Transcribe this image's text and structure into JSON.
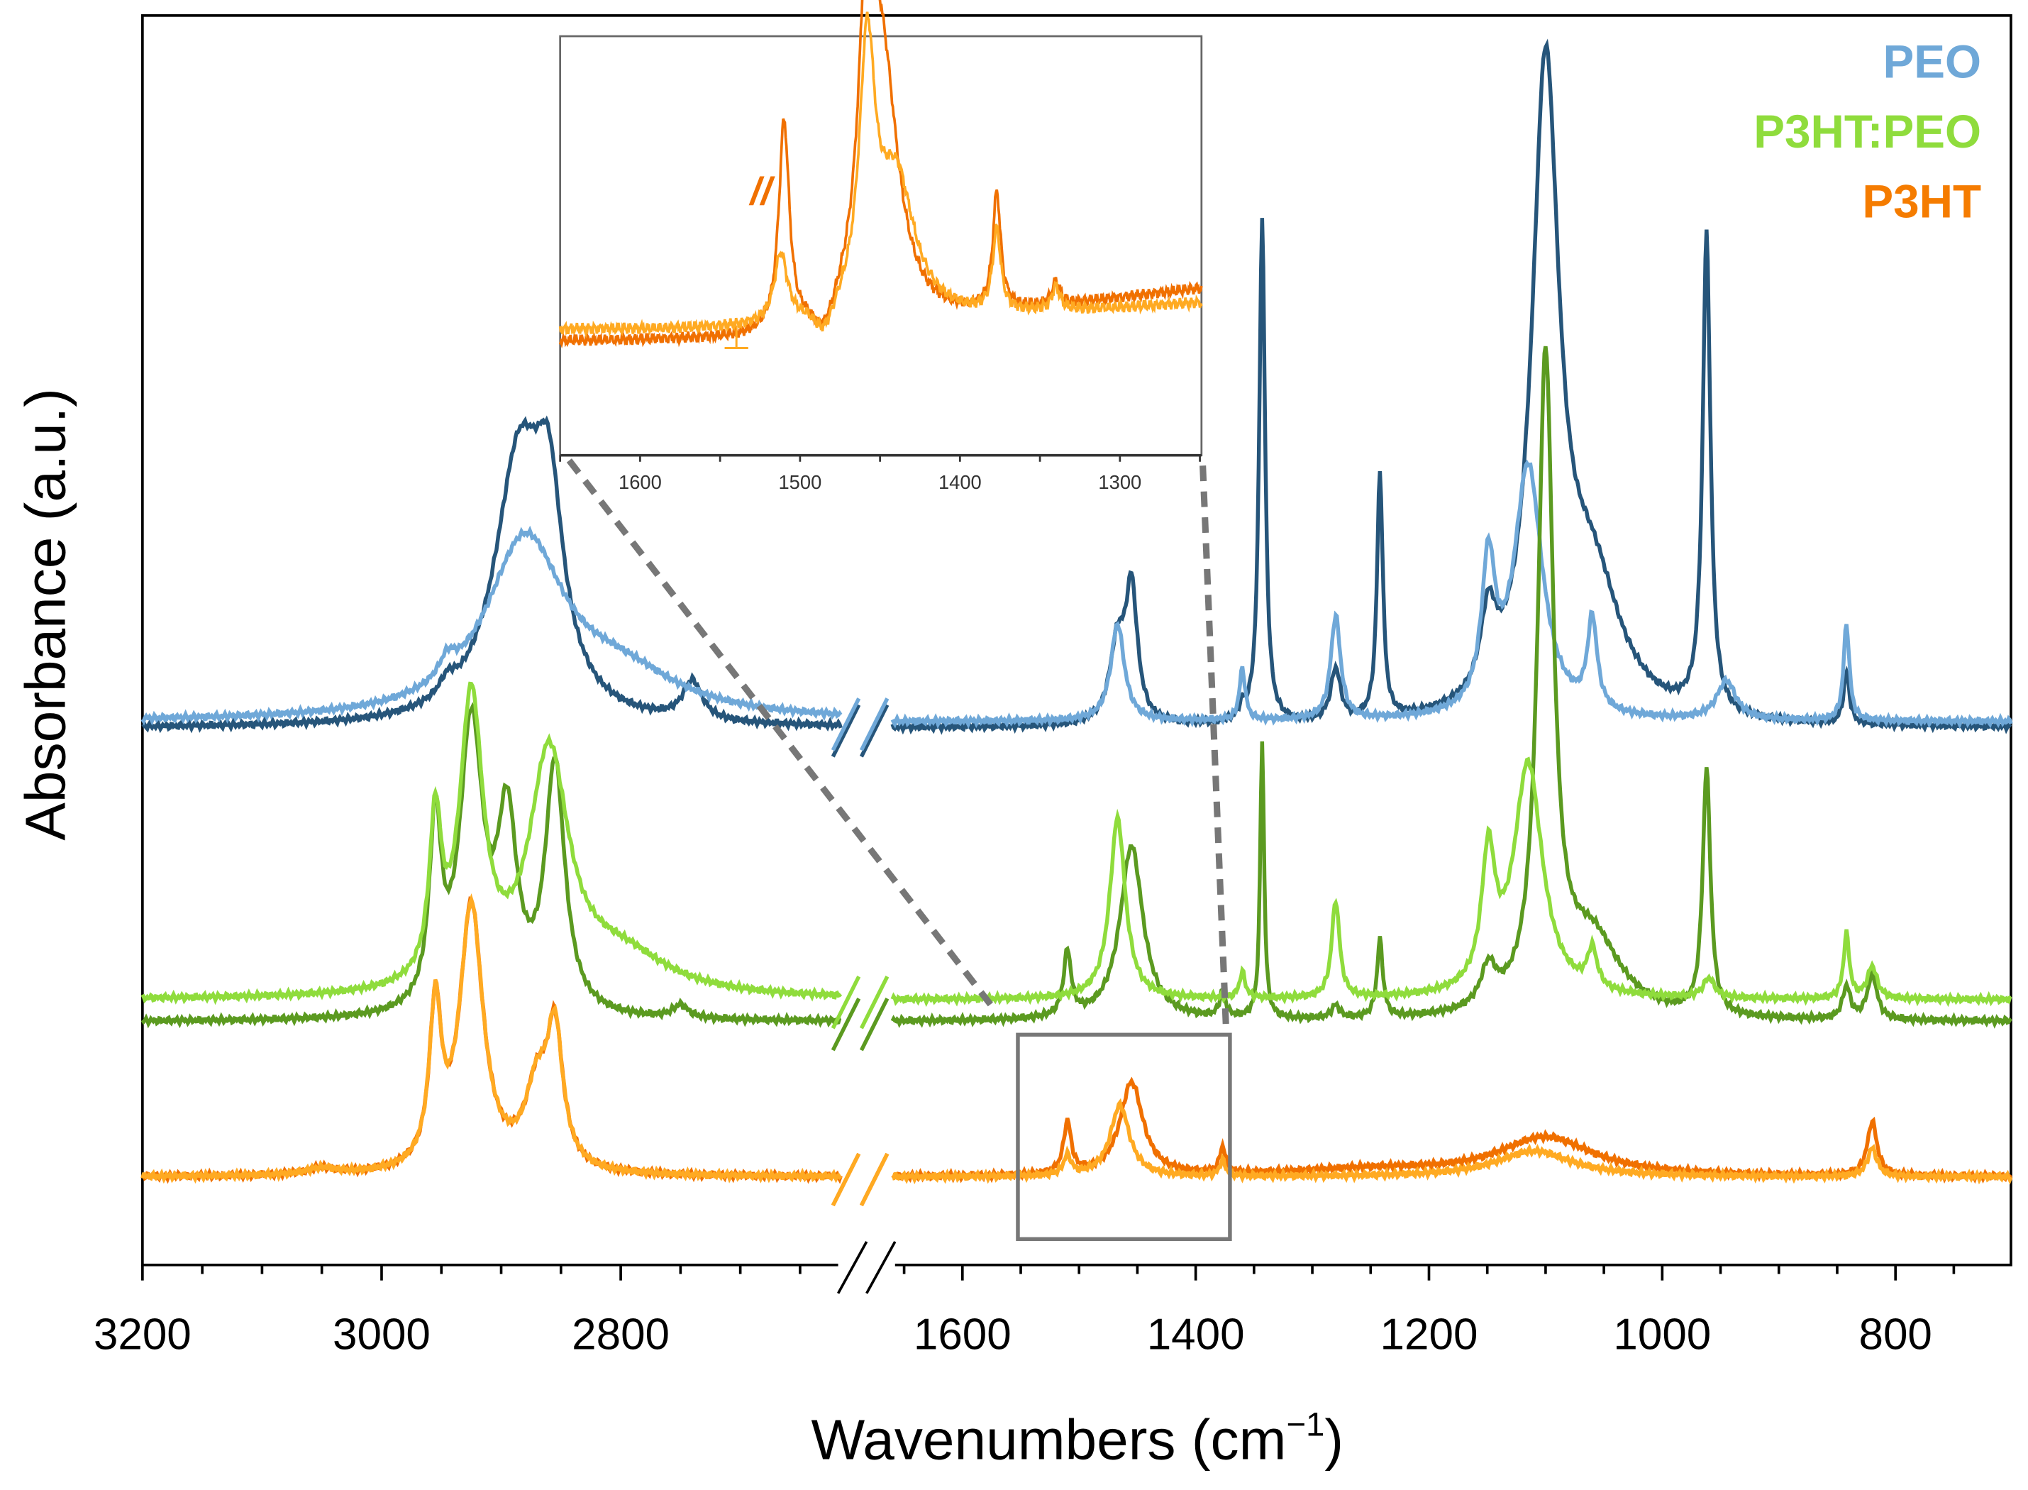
{
  "chart_data": {
    "type": "line",
    "xlabel": "Wavenumbers (cm⁻¹)",
    "xlabel_main": "Wavenumbers (cm",
    "xlabel_sup": "−1",
    "xlabel_close": ")",
    "ylabel": "Absorbance (a.u.)",
    "x_segments": [
      [
        3200,
        2616
      ],
      [
        1660,
        701
      ]
    ],
    "x_ticks_left": [
      "3200",
      "3000",
      "2800"
    ],
    "x_ticks_right": [
      "1600",
      "1400",
      "1200",
      "1000",
      "800"
    ],
    "legend": [
      {
        "label": "PEO",
        "color": "#6fa8d8"
      },
      {
        "label": "P3HT:PEO",
        "color": "#8fdc3c"
      },
      {
        "label": "P3HT",
        "color": "#f57c00"
      }
    ],
    "legend_placement": "top-right",
    "series": [
      {
        "name": "PEO (dark)",
        "color": "#26557a",
        "offset": 4.15,
        "peaks": [
          [
            2885,
            2.0,
            25
          ],
          [
            2860,
            1.3,
            14
          ],
          [
            2945,
            0.12,
            8
          ],
          [
            2740,
            0.3,
            10
          ],
          [
            1467,
            0.6,
            8
          ],
          [
            1455,
            1.0,
            6
          ],
          [
            1360,
            0.1,
            3
          ],
          [
            1343,
            3.9,
            3
          ],
          [
            1280,
            0.4,
            5
          ],
          [
            1242,
            1.9,
            3
          ],
          [
            1149,
            0.6,
            8
          ],
          [
            1100,
            4.9,
            14
          ],
          [
            1060,
            1.0,
            30
          ],
          [
            962,
            3.7,
            4
          ],
          [
            842,
            0.4,
            3
          ]
        ]
      },
      {
        "name": "PEO (light)",
        "color": "#6fa8d8",
        "offset": 4.2,
        "peaks": [
          [
            2880,
            1.35,
            40
          ],
          [
            2945,
            0.15,
            8
          ],
          [
            2800,
            0.3,
            60
          ],
          [
            1467,
            0.75,
            7
          ],
          [
            1360,
            0.4,
            3
          ],
          [
            1280,
            0.8,
            5
          ],
          [
            1149,
            1.1,
            7
          ],
          [
            1115,
            1.95,
            15
          ],
          [
            1060,
            0.7,
            5
          ],
          [
            945,
            0.3,
            10
          ],
          [
            842,
            0.75,
            3
          ]
        ]
      },
      {
        "name": "P3HT:PEO (dark)",
        "color": "#5b9a20",
        "offset": 1.88,
        "peaks": [
          [
            2955,
            1.4,
            6
          ],
          [
            2925,
            2.2,
            12
          ],
          [
            2895,
            1.4,
            10
          ],
          [
            2855,
            1.9,
            10
          ],
          [
            2750,
            0.1,
            8
          ],
          [
            1510,
            0.5,
            4
          ],
          [
            1455,
            1.35,
            12
          ],
          [
            1377,
            0.2,
            3
          ],
          [
            1343,
            2.15,
            2
          ],
          [
            1280,
            0.1,
            4
          ],
          [
            1242,
            0.6,
            3
          ],
          [
            1149,
            0.3,
            8
          ],
          [
            1100,
            5.0,
            8
          ],
          [
            1060,
            0.6,
            30
          ],
          [
            962,
            1.9,
            4
          ],
          [
            842,
            0.25,
            4
          ],
          [
            820,
            0.35,
            5
          ]
        ]
      },
      {
        "name": "P3HT:PEO (light)",
        "color": "#8fdc3c",
        "offset": 2.05,
        "peaks": [
          [
            2955,
            1.2,
            6
          ],
          [
            2925,
            2.2,
            12
          ],
          [
            2860,
            1.8,
            20
          ],
          [
            2800,
            0.3,
            50
          ],
          [
            1467,
            1.4,
            8
          ],
          [
            1360,
            0.2,
            3
          ],
          [
            1280,
            0.75,
            4
          ],
          [
            1149,
            1.0,
            7
          ],
          [
            1115,
            1.8,
            15
          ],
          [
            1060,
            0.3,
            5
          ],
          [
            960,
            0.15,
            6
          ],
          [
            842,
            0.5,
            3
          ],
          [
            820,
            0.25,
            5
          ]
        ]
      },
      {
        "name": "P3HT (dark)",
        "color": "#f07000",
        "offset": 0.68,
        "peaks": [
          [
            3050,
            0.05,
            15
          ],
          [
            2955,
            1.2,
            6
          ],
          [
            2925,
            2.05,
            12
          ],
          [
            2870,
            0.6,
            12
          ],
          [
            2855,
            1.0,
            8
          ],
          [
            1510,
            0.4,
            4
          ],
          [
            1455,
            0.72,
            12
          ],
          [
            1377,
            0.2,
            3
          ],
          [
            1250,
            0.05,
            80
          ],
          [
            1100,
            0.3,
            50
          ],
          [
            820,
            0.42,
            5
          ]
        ]
      },
      {
        "name": "P3HT (light)",
        "color": "#ffaa22",
        "offset": 0.68,
        "peaks": [
          [
            3050,
            0.05,
            15
          ],
          [
            2955,
            1.2,
            6
          ],
          [
            2925,
            2.05,
            12
          ],
          [
            2870,
            0.6,
            12
          ],
          [
            2855,
            1.0,
            8
          ],
          [
            1510,
            0.15,
            4
          ],
          [
            1465,
            0.55,
            10
          ],
          [
            1377,
            0.12,
            3
          ],
          [
            1110,
            0.2,
            40
          ],
          [
            820,
            0.22,
            5
          ]
        ]
      }
    ],
    "inset": {
      "xlim": [
        1650,
        1249
      ],
      "x_ticks": [
        "1600",
        "1500",
        "1400",
        "1300"
      ],
      "label_parallel": "//",
      "label_perp": "⊥",
      "series": [
        {
          "name": "P3HT parallel",
          "color": "#f07000",
          "offset": 0.2,
          "slope": 0.0006,
          "peaks": [
            [
              1510,
              0.9,
              4
            ],
            [
              1458,
              1.25,
              6
            ],
            [
              1448,
              1.0,
              12
            ],
            [
              1377,
              0.5,
              3
            ],
            [
              1340,
              0.1,
              3
            ]
          ]
        },
        {
          "name": "P3HT perpendicular",
          "color": "#ffaa22",
          "offset": 0.25,
          "slope": 0.0003,
          "peaks": [
            [
              1512,
              0.3,
              5
            ],
            [
              1458,
              1.1,
              6
            ],
            [
              1440,
              0.6,
              14
            ],
            [
              1377,
              0.35,
              3
            ],
            [
              1340,
              0.1,
              3
            ]
          ]
        }
      ]
    }
  }
}
